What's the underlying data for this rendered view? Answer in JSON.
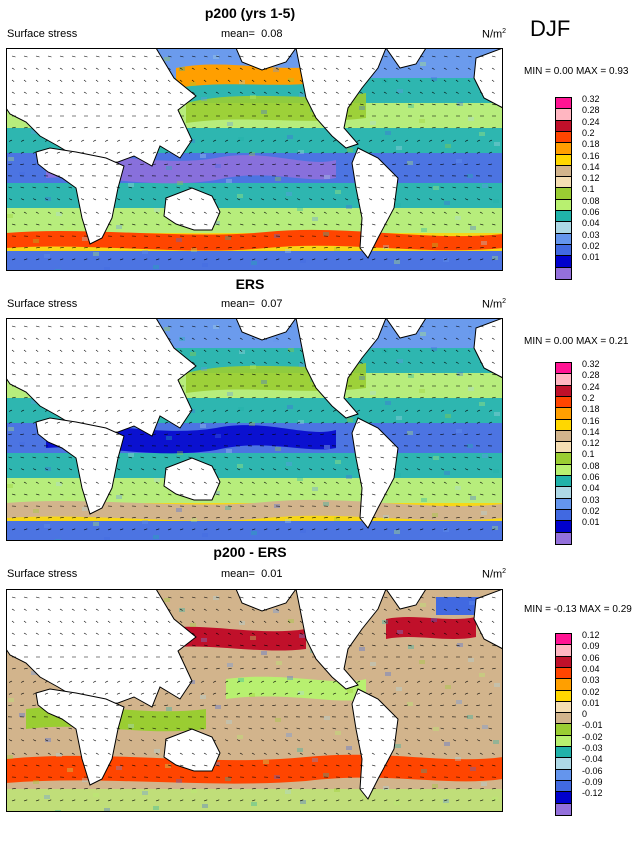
{
  "season": "DJF",
  "panels": [
    {
      "title": "p200 (yrs 1-5)",
      "variable": "Surface stress",
      "mean_label": "mean=",
      "mean_value": "0.08",
      "units": "N/m",
      "units_sup": "2",
      "minmax": "MIN =  0.00 MAX =  0.93",
      "legend": [
        {
          "label": "0.32",
          "color": "#ff1493"
        },
        {
          "label": "0.28",
          "color": "#ffb6c1"
        },
        {
          "label": "0.24",
          "color": "#c0102a"
        },
        {
          "label": "0.2",
          "color": "#ff4500"
        },
        {
          "label": "0.18",
          "color": "#ff9f00"
        },
        {
          "label": "0.16",
          "color": "#ffd700"
        },
        {
          "label": "0.14",
          "color": "#d2b48c"
        },
        {
          "label": "0.12",
          "color": "#f5deb3"
        },
        {
          "label": "0.1",
          "color": "#9acd32"
        },
        {
          "label": "0.08",
          "color": "#b8f070"
        },
        {
          "label": "0.06",
          "color": "#20b2aa"
        },
        {
          "label": "0.04",
          "color": "#add8e6"
        },
        {
          "label": "0.03",
          "color": "#6495ed"
        },
        {
          "label": "0.02",
          "color": "#4169e1"
        },
        {
          "label": "0.01",
          "color": "#0000cd"
        },
        {
          "label": "",
          "color": "#9370db"
        }
      ]
    },
    {
      "title": "ERS",
      "variable": "Surface stress",
      "mean_label": "mean=",
      "mean_value": "0.07",
      "units": "N/m",
      "units_sup": "2",
      "minmax": "MIN =  0.00 MAX =  0.21",
      "legend": [
        {
          "label": "0.32",
          "color": "#ff1493"
        },
        {
          "label": "0.28",
          "color": "#ffb6c1"
        },
        {
          "label": "0.24",
          "color": "#c0102a"
        },
        {
          "label": "0.2",
          "color": "#ff4500"
        },
        {
          "label": "0.18",
          "color": "#ff9f00"
        },
        {
          "label": "0.16",
          "color": "#ffd700"
        },
        {
          "label": "0.14",
          "color": "#d2b48c"
        },
        {
          "label": "0.12",
          "color": "#f5deb3"
        },
        {
          "label": "0.1",
          "color": "#9acd32"
        },
        {
          "label": "0.08",
          "color": "#b8f070"
        },
        {
          "label": "0.06",
          "color": "#20b2aa"
        },
        {
          "label": "0.04",
          "color": "#add8e6"
        },
        {
          "label": "0.03",
          "color": "#6495ed"
        },
        {
          "label": "0.02",
          "color": "#4169e1"
        },
        {
          "label": "0.01",
          "color": "#0000cd"
        },
        {
          "label": "",
          "color": "#9370db"
        }
      ]
    },
    {
      "title": "p200 - ERS",
      "variable": "Surface stress",
      "mean_label": "mean=",
      "mean_value": "0.01",
      "units": "N/m",
      "units_sup": "2",
      "minmax": "MIN = -0.13 MAX =  0.29",
      "legend": [
        {
          "label": "0.12",
          "color": "#ff1493"
        },
        {
          "label": "0.09",
          "color": "#ffb6c1"
        },
        {
          "label": "0.06",
          "color": "#c0102a"
        },
        {
          "label": "0.04",
          "color": "#ff4500"
        },
        {
          "label": "0.03",
          "color": "#ff9f00"
        },
        {
          "label": "0.02",
          "color": "#ffd700"
        },
        {
          "label": "0.01",
          "color": "#f5deb3"
        },
        {
          "label": "0",
          "color": "#d2b48c"
        },
        {
          "label": "-0.01",
          "color": "#9acd32"
        },
        {
          "label": "-0.02",
          "color": "#b8f070"
        },
        {
          "label": "-0.03",
          "color": "#20b2aa"
        },
        {
          "label": "-0.04",
          "color": "#add8e6"
        },
        {
          "label": "-0.06",
          "color": "#6495ed"
        },
        {
          "label": "-0.09",
          "color": "#4169e1"
        },
        {
          "label": "-0.12",
          "color": "#0000cd"
        },
        {
          "label": "",
          "color": "#9370db"
        }
      ]
    }
  ]
}
